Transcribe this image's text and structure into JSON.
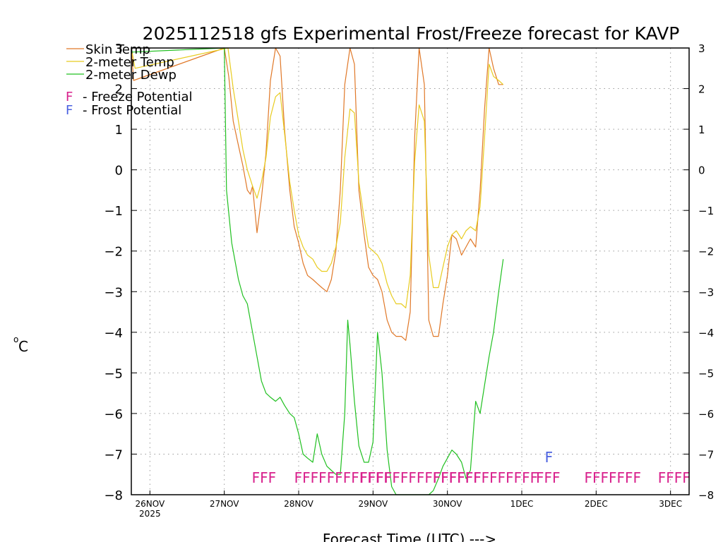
{
  "chart_data": {
    "type": "line",
    "title": "2025112518 gfs Experimental Frost/Freeze forecast for KAVP",
    "xlabel": "Forecast Time (UTC) --->",
    "ylabel": "°C",
    "ylabel_parts": {
      "degree": "o",
      "unit": "C"
    },
    "ylim": [
      -8,
      3
    ],
    "xlim_days": [
      -0.25,
      7.25
    ],
    "y_ticks": [
      -8,
      -7,
      -6,
      -5,
      -4,
      -3,
      -2,
      -1,
      0,
      1,
      2,
      3
    ],
    "y_tick_labels": [
      "−8",
      "−7",
      "−6",
      "−5",
      "−4",
      "−3",
      "−2",
      "−1",
      "0",
      "1",
      "2",
      "3"
    ],
    "x_ticks": [
      {
        "day": 0,
        "label": "26NOV",
        "sublabel": "2025"
      },
      {
        "day": 1,
        "label": "27NOV"
      },
      {
        "day": 2,
        "label": "28NOV"
      },
      {
        "day": 3,
        "label": "29NOV"
      },
      {
        "day": 4,
        "label": "30NOV"
      },
      {
        "day": 5,
        "label": "1DEC"
      },
      {
        "day": 6,
        "label": "2DEC"
      },
      {
        "day": 7,
        "label": "3DEC"
      }
    ],
    "legend": [
      {
        "label": "Skin Temp",
        "color": "#e07828"
      },
      {
        "label": "2-meter Temp",
        "color": "#e8cc20"
      },
      {
        "label": "2-meter Dewp",
        "color": "#20c020"
      }
    ],
    "flag_legend": [
      {
        "symbol": "F",
        "text": "- Freeze Potential",
        "color": "#d8208c"
      },
      {
        "symbol": "F",
        "text": "- Frost Potential",
        "color": "#4a60e0"
      }
    ],
    "series": [
      {
        "name": "Skin Temp",
        "color": "#e07828",
        "x": [
          -0.25,
          -0.22,
          1.0,
          1.06,
          1.12,
          1.19,
          1.25,
          1.31,
          1.35,
          1.38,
          1.44,
          1.5,
          1.56,
          1.62,
          1.69,
          1.75,
          1.81,
          1.88,
          1.94,
          2.0,
          2.06,
          2.12,
          2.19,
          2.25,
          2.31,
          2.38,
          2.44,
          2.5,
          2.56,
          2.62,
          2.69,
          2.75,
          2.81,
          2.88,
          2.94,
          3.0,
          3.06,
          3.12,
          3.19,
          3.25,
          3.31,
          3.38,
          3.44,
          3.5,
          3.56,
          3.62,
          3.69,
          3.75,
          3.81,
          3.88,
          3.94,
          4.0,
          4.06,
          4.12,
          4.19,
          4.25,
          4.31,
          4.38,
          4.44,
          4.5,
          4.56,
          4.62,
          4.69,
          4.75
        ],
        "y": [
          3,
          2.2,
          3,
          2.3,
          1.2,
          0.6,
          0.1,
          -0.5,
          -0.6,
          -0.4,
          -1.55,
          -0.7,
          0.4,
          2.2,
          3.0,
          2.8,
          1.0,
          -0.5,
          -1.4,
          -1.8,
          -2.3,
          -2.6,
          -2.7,
          -2.8,
          -2.9,
          -3.0,
          -2.7,
          -2.0,
          -0.5,
          2.1,
          3.0,
          2.6,
          -0.5,
          -1.6,
          -2.4,
          -2.6,
          -2.7,
          -3.0,
          -3.7,
          -4.0,
          -4.1,
          -4.1,
          -4.2,
          -3.5,
          0.8,
          3.0,
          2.1,
          -3.7,
          -4.1,
          -4.1,
          -3.3,
          -2.6,
          -1.6,
          -1.7,
          -2.1,
          -1.9,
          -1.7,
          -1.9,
          -0.5,
          1.5,
          3.0,
          2.5,
          2.1,
          2.1
        ]
      },
      {
        "name": "2-meter Temp",
        "color": "#e8cc20",
        "x": [
          -0.25,
          -0.2,
          1.05,
          1.12,
          1.19,
          1.25,
          1.31,
          1.38,
          1.44,
          1.5,
          1.56,
          1.62,
          1.69,
          1.75,
          1.81,
          1.88,
          1.94,
          2.0,
          2.06,
          2.12,
          2.19,
          2.25,
          2.31,
          2.38,
          2.44,
          2.5,
          2.56,
          2.62,
          2.69,
          2.75,
          2.81,
          2.88,
          2.94,
          3.0,
          3.06,
          3.12,
          3.19,
          3.25,
          3.31,
          3.38,
          3.44,
          3.5,
          3.56,
          3.62,
          3.69,
          3.75,
          3.81,
          3.88,
          3.94,
          4.0,
          4.06,
          4.12,
          4.19,
          4.25,
          4.31,
          4.38,
          4.44,
          4.5,
          4.56,
          4.62,
          4.69,
          4.75
        ],
        "y": [
          3,
          2.5,
          3,
          2.0,
          1.2,
          0.5,
          0.0,
          -0.4,
          -0.7,
          -0.3,
          0.3,
          1.3,
          1.8,
          1.9,
          0.9,
          -0.3,
          -1.0,
          -1.6,
          -1.9,
          -2.1,
          -2.2,
          -2.4,
          -2.5,
          -2.5,
          -2.3,
          -1.9,
          -1.3,
          0.3,
          1.5,
          1.4,
          -0.3,
          -1.2,
          -1.9,
          -2.0,
          -2.1,
          -2.3,
          -2.8,
          -3.1,
          -3.3,
          -3.3,
          -3.4,
          -2.6,
          0.2,
          1.6,
          1.2,
          -2.1,
          -2.9,
          -2.9,
          -2.4,
          -1.9,
          -1.6,
          -1.5,
          -1.7,
          -1.5,
          -1.4,
          -1.5,
          -0.9,
          0.8,
          2.6,
          2.3,
          2.2,
          2.1
        ]
      },
      {
        "name": "2-meter Dewp",
        "color": "#20c020",
        "x": [
          -0.25,
          -0.24,
          1.0,
          1.03,
          1.1,
          1.19,
          1.25,
          1.31,
          1.38,
          1.44,
          1.5,
          1.56,
          1.62,
          1.69,
          1.75,
          1.81,
          1.88,
          1.94,
          2.0,
          2.06,
          2.12,
          2.19,
          2.25,
          2.31,
          2.38,
          2.44,
          2.5,
          2.56,
          2.62,
          2.66,
          2.69,
          2.75,
          2.81,
          2.88,
          2.94,
          3.0,
          3.06,
          3.12,
          3.19,
          3.25,
          3.31,
          3.38,
          3.44,
          3.5,
          3.56,
          3.62,
          3.69,
          3.75,
          3.81,
          3.88,
          3.94,
          4.0,
          4.06,
          4.12,
          4.19,
          4.25,
          4.31,
          4.38,
          4.44,
          4.5,
          4.56,
          4.62,
          4.69,
          4.75
        ],
        "y": [
          3,
          2.9,
          3,
          -0.5,
          -1.8,
          -2.7,
          -3.1,
          -3.3,
          -4.0,
          -4.6,
          -5.2,
          -5.5,
          -5.6,
          -5.7,
          -5.6,
          -5.8,
          -6.0,
          -6.1,
          -6.5,
          -7.0,
          -7.1,
          -7.2,
          -6.5,
          -7.0,
          -7.3,
          -7.4,
          -7.5,
          -7.5,
          -6.0,
          -3.7,
          -4.3,
          -5.7,
          -6.8,
          -7.2,
          -7.2,
          -6.7,
          -4.0,
          -5.0,
          -6.9,
          -7.8,
          -8.0,
          -8.0,
          -8.0,
          -8.0,
          -8.0,
          -8.0,
          -8.0,
          -8.0,
          -7.9,
          -7.6,
          -7.3,
          -7.1,
          -6.9,
          -7.0,
          -7.2,
          -7.6,
          -7.4,
          -5.7,
          -6.0,
          -5.3,
          -4.6,
          -4.0,
          -3.0,
          -2.2
        ]
      }
    ],
    "flag_rows": {
      "freeze": {
        "color": "#d8208c",
        "y_value": -7.48,
        "labels": [
          "FFF",
          "FFFFFFFFFFFF",
          "FFFFFFFFFFFFFFF",
          "FFFFFFFFFFFFF",
          "FFF",
          "FFFFFFF",
          "FFFF"
        ],
        "start_days": [
          1.37,
          1.94,
          2.82,
          3.8,
          5.19,
          5.84,
          6.83
        ]
      },
      "frost": {
        "color": "#4a60e0",
        "y_value": -7.2,
        "labels": [
          "F"
        ],
        "start_days": [
          5.31
        ]
      }
    }
  }
}
